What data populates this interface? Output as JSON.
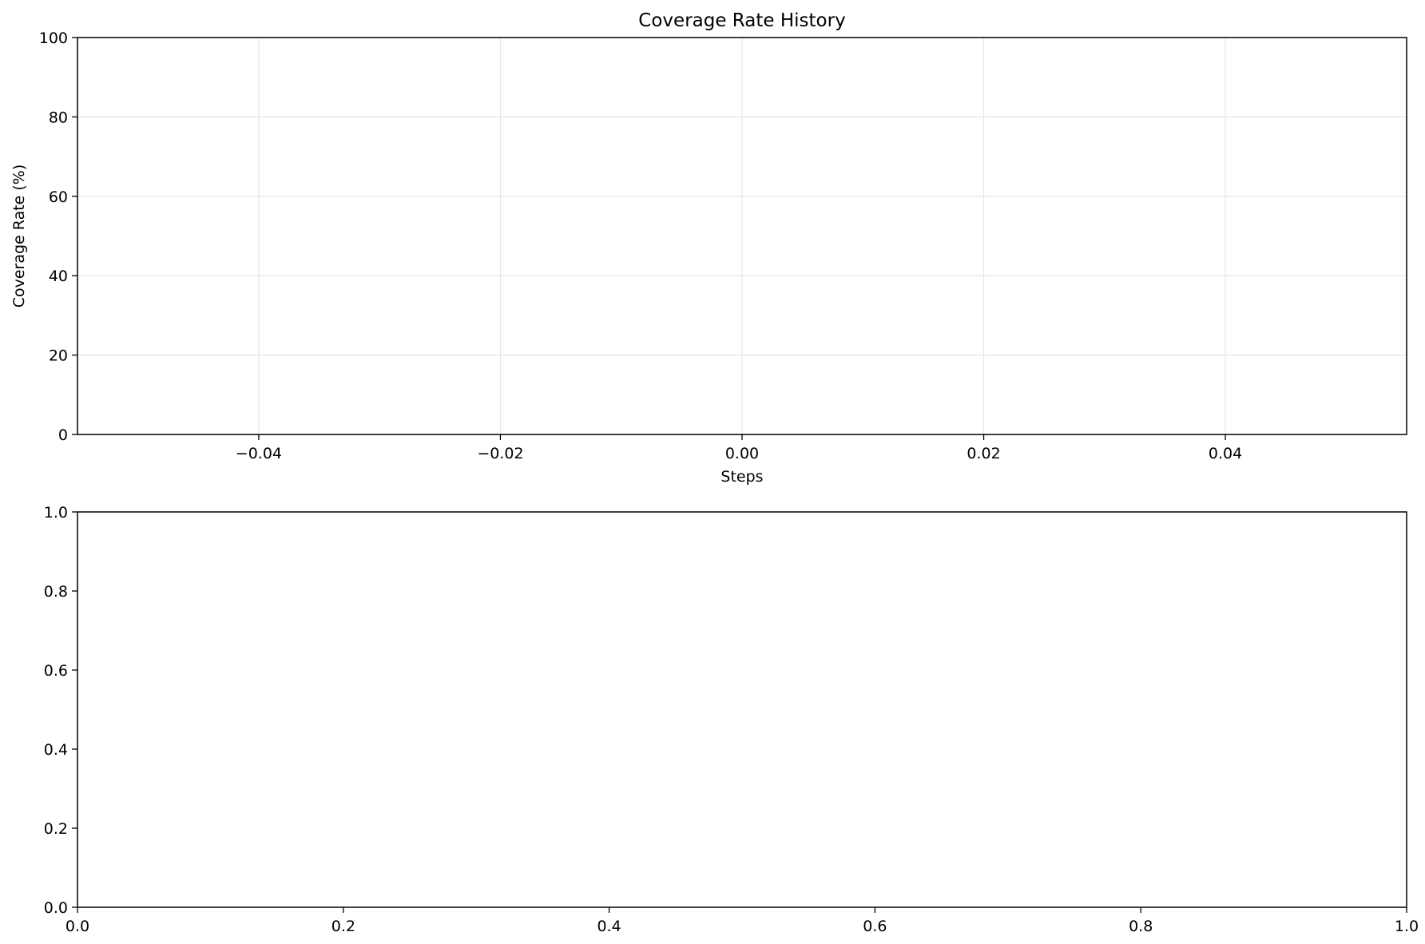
{
  "chart_data": [
    {
      "type": "line",
      "title": "Coverage Rate History",
      "xlabel": "Steps",
      "ylabel": "Coverage Rate (%)",
      "xlim": [
        -0.055,
        0.055
      ],
      "ylim": [
        0,
        100
      ],
      "x_ticks": [
        -0.04,
        -0.02,
        0.0,
        0.02,
        0.04
      ],
      "x_tick_labels": [
        "−0.04",
        "−0.02",
        "0.00",
        "0.02",
        "0.04"
      ],
      "y_ticks": [
        0,
        20,
        40,
        60,
        80,
        100
      ],
      "y_tick_labels": [
        "0",
        "20",
        "40",
        "60",
        "80",
        "100"
      ],
      "grid": true,
      "series": []
    },
    {
      "type": "line",
      "title": "",
      "xlabel": "",
      "ylabel": "",
      "xlim": [
        0,
        1
      ],
      "ylim": [
        0,
        1
      ],
      "x_ticks": [
        0,
        0.2,
        0.4,
        0.6,
        0.8,
        1.0
      ],
      "x_tick_labels": [
        "0.0",
        "0.2",
        "0.4",
        "0.6",
        "0.8",
        "1.0"
      ],
      "y_ticks": [
        0,
        0.2,
        0.4,
        0.6,
        0.8,
        1.0
      ],
      "y_tick_labels": [
        "0.0",
        "0.2",
        "0.4",
        "0.6",
        "0.8",
        "1.0"
      ],
      "grid": false,
      "series": []
    }
  ]
}
